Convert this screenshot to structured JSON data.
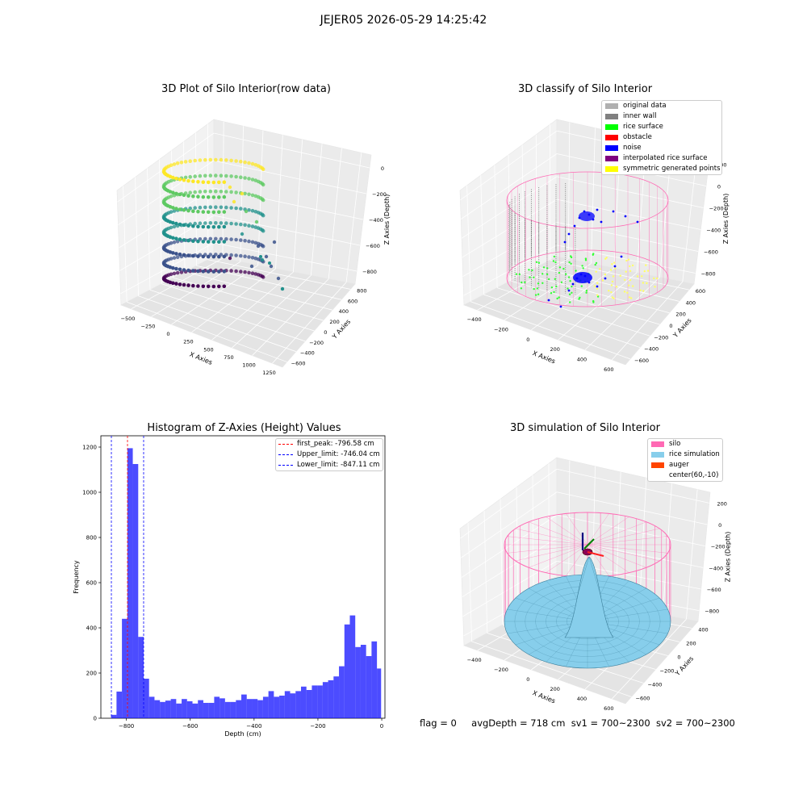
{
  "suptitle": "JEJER05 2026-05-29 14:25:42",
  "status": {
    "flag": "flag = 0",
    "avg_depth": "avgDepth = 718 cm",
    "sv1": "sv1 = 700~2300",
    "sv2": "sv2 = 700~2300"
  },
  "colors": {
    "viridis": [
      "#440154",
      "#3b528b",
      "#21918c",
      "#5ec962",
      "#fde725"
    ],
    "histogram": "#0000ff",
    "peak_line": "#ff0000",
    "limit_line": "#0000ff",
    "silo": "#ff69b4",
    "rice": "#87ceeb"
  },
  "chart_data": [
    {
      "type": "scatter",
      "subtype": "3d",
      "title": "3D Plot of Silo Interior(row data)",
      "xlabel": "X Axies",
      "ylabel": "Y Axies",
      "zlabel": "Z Axies (Depth)",
      "x_ticks": [
        "−500",
        "−250",
        "0",
        "250",
        "500",
        "750",
        "1000",
        "1250"
      ],
      "y_ticks": [
        "−600",
        "−400",
        "−200",
        "0",
        "200",
        "400",
        "600",
        "800"
      ],
      "z_ticks": [
        "−800",
        "−600",
        "−400",
        "−200",
        "0"
      ],
      "colormap": "viridis"
    },
    {
      "type": "scatter",
      "subtype": "3d",
      "title": "3D classify of Silo Interior",
      "xlabel": "X Axies",
      "ylabel": "Y Axies",
      "zlabel": "Z Axies (Depth)",
      "x_ticks": [
        "−400",
        "−200",
        "0",
        "200",
        "400",
        "600"
      ],
      "y_ticks": [
        "−600",
        "−400",
        "−200",
        "0",
        "200",
        "400",
        "600"
      ],
      "z_ticks": [
        "−800",
        "−600",
        "−400",
        "−200",
        "0",
        "200"
      ],
      "legend": [
        {
          "label": "original data",
          "color": "#b0b0b0"
        },
        {
          "label": "inner wall",
          "color": "#808080"
        },
        {
          "label": "rice surface",
          "color": "#00ff00"
        },
        {
          "label": "obstacle",
          "color": "#ff0000"
        },
        {
          "label": "noise",
          "color": "#0000ff"
        },
        {
          "label": "interpolated rice surface",
          "color": "#800080"
        },
        {
          "label": "symmetric generated points",
          "color": "#ffff00"
        }
      ]
    },
    {
      "type": "bar",
      "subtype": "histogram",
      "title": "Histogram of Z-Axies (Height) Values",
      "xlabel": "Depth (cm)",
      "ylabel": "Frequency",
      "xlim": [
        -880,
        10
      ],
      "ylim": [
        0,
        1250
      ],
      "x_ticks": [
        -800,
        -600,
        -400,
        -200,
        0
      ],
      "x_tick_labels": [
        "−800",
        "−600",
        "−400",
        "−200",
        "0"
      ],
      "y_ticks": [
        0,
        200,
        400,
        600,
        800,
        1000,
        1200
      ],
      "y_tick_labels": [
        "0",
        "200",
        "400",
        "600",
        "800",
        "1000",
        "1200"
      ],
      "bin_edges": [
        -848,
        -831,
        -814,
        -797,
        -780,
        -763,
        -746,
        -729,
        -712,
        -695,
        -678,
        -661,
        -644,
        -627,
        -610,
        -593,
        -576,
        -559,
        -542,
        -525,
        -508,
        -491,
        -474,
        -457,
        -440,
        -423,
        -406,
        -389,
        -372,
        -355,
        -338,
        -321,
        -304,
        -287,
        -270,
        -253,
        -236,
        -219,
        -202,
        -185,
        -168,
        -151,
        -134,
        -117,
        -100,
        -83,
        -66,
        -49,
        -32,
        -15,
        -2
      ],
      "values": [
        15,
        118,
        440,
        1195,
        1125,
        360,
        175,
        95,
        80,
        72,
        78,
        85,
        65,
        85,
        75,
        65,
        80,
        68,
        68,
        95,
        88,
        72,
        72,
        80,
        105,
        85,
        85,
        80,
        95,
        120,
        95,
        100,
        120,
        110,
        120,
        140,
        125,
        145,
        145,
        160,
        168,
        185,
        230,
        415,
        455,
        315,
        325,
        275,
        340,
        220
      ],
      "reference_lines": [
        {
          "label": "first_peak: -796.58 cm",
          "x": -796.58,
          "color": "#ff0000"
        },
        {
          "label": "Upper_limit: -746.04 cm",
          "x": -746.04,
          "color": "#0000ff"
        },
        {
          "label": "Lower_limit: -847.11 cm",
          "x": -847.11,
          "color": "#0000ff"
        }
      ]
    },
    {
      "type": "area",
      "subtype": "3d-surface",
      "title": "3D simulation of Silo Interior",
      "xlabel": "X Axies",
      "ylabel": "Y Axies",
      "zlabel": "Z Axies (Depth)",
      "x_ticks": [
        "−400",
        "−200",
        "0",
        "200",
        "400",
        "600"
      ],
      "y_ticks": [
        "−600",
        "−400",
        "−200",
        "0",
        "200",
        "400"
      ],
      "z_ticks": [
        "−800",
        "−600",
        "−400",
        "−200",
        "0",
        "200"
      ],
      "legend": [
        {
          "label": "silo",
          "color": "#ff69b4"
        },
        {
          "label": "rice simulation",
          "color": "#87ceeb"
        },
        {
          "label": "auger",
          "color": "#ff4500"
        },
        {
          "label": "center(60,-10)",
          "color": ""
        }
      ]
    }
  ]
}
